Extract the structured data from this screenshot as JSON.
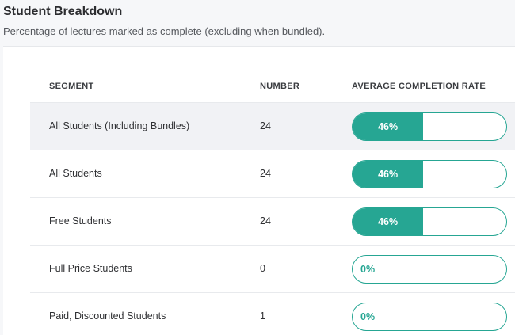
{
  "header": {
    "title": "Student Breakdown",
    "subtitle": "Percentage of lectures marked as complete (excluding when bundled)."
  },
  "table": {
    "columns": {
      "segment": "SEGMENT",
      "number": "NUMBER",
      "rate": "AVERAGE COMPLETION RATE"
    },
    "rows": [
      {
        "segment": "All Students (Including Bundles)",
        "number": "24",
        "rate_label": "46%",
        "rate": 0.46,
        "highlighted": true
      },
      {
        "segment": "All Students",
        "number": "24",
        "rate_label": "46%",
        "rate": 0.46,
        "highlighted": false
      },
      {
        "segment": "Free Students",
        "number": "24",
        "rate_label": "46%",
        "rate": 0.46,
        "highlighted": false
      },
      {
        "segment": "Full Price Students",
        "number": "0",
        "rate_label": "0%",
        "rate": 0,
        "highlighted": false
      },
      {
        "segment": "Paid, Discounted Students",
        "number": "1",
        "rate_label": "0%",
        "rate": 0,
        "highlighted": false
      }
    ]
  },
  "colors": {
    "accent": "#26a693",
    "row_highlight": "#f1f2f5"
  }
}
